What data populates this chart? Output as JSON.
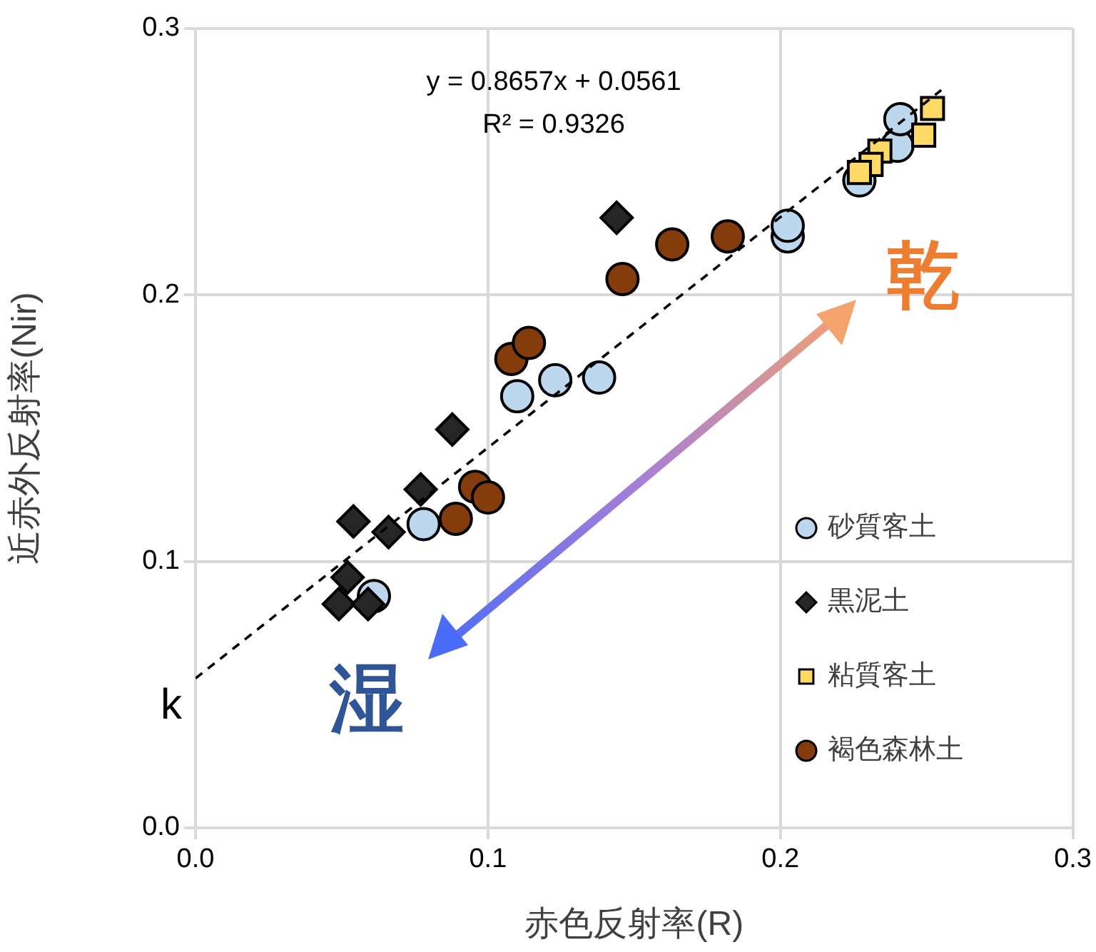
{
  "chart_data": {
    "type": "scatter",
    "xlabel": "赤色反射率(R)",
    "ylabel": "近赤外反射率(Nir)",
    "xlim": [
      0,
      0.3
    ],
    "xticks": [
      {
        "value": 0,
        "label": "0.0"
      },
      0.1,
      0.2,
      0.3
    ],
    "ylim": [
      0,
      0.3
    ],
    "yticks": [
      {
        "value": 0,
        "label": "0.0"
      },
      0.1,
      0.2,
      0.3
    ],
    "grid": true,
    "legend": "bottom right",
    "series": [
      {
        "name": "砂質客土",
        "color": "#bdd7ee",
        "marker": "circle",
        "x": [
          0.061,
          0.078,
          0.11,
          0.123,
          0.138,
          0.2025,
          0.2025,
          0.227,
          0.24,
          0.241
        ],
        "values": [
          0.087,
          0.114,
          0.162,
          0.168,
          0.169,
          0.222,
          0.226,
          0.243,
          0.256,
          0.266
        ]
      },
      {
        "name": "黒泥土",
        "color": "#262626",
        "marker": "diamond",
        "x": [
          0.144,
          0.0878,
          0.077,
          0.054,
          0.066,
          0.052,
          0.049,
          0.059
        ],
        "values": [
          0.229,
          0.1495,
          0.127,
          0.115,
          0.111,
          0.094,
          0.084,
          0.084
        ]
      },
      {
        "name": "粘質客土",
        "color": "#ffd966",
        "marker": "square",
        "x": [
          0.252,
          0.249,
          0.234,
          0.231,
          0.227
        ],
        "values": [
          0.27,
          0.26,
          0.254,
          0.249,
          0.246
        ]
      },
      {
        "name": "褐色森林土",
        "color": "#843c0c",
        "marker": "circle",
        "x": [
          0.146,
          0.163,
          0.182,
          0.108,
          0.114,
          0.0956,
          0.1,
          0.089
        ],
        "values": [
          0.206,
          0.219,
          0.222,
          0.176,
          0.182,
          0.128,
          0.124,
          0.116
        ]
      },
      {
        "type": "line",
        "color": "#000000",
        "line_style": "dashed",
        "marker": "none",
        "x": [
          0,
          0.255
        ],
        "values": [
          0.0561,
          0.2769
        ]
      }
    ],
    "annotations": [
      "y = 0.8657x + 0.0561",
      "R² = 0.9326",
      {
        "text": "k",
        "x": 0,
        "y": 0.0561
      },
      "乾",
      "湿"
    ]
  }
}
